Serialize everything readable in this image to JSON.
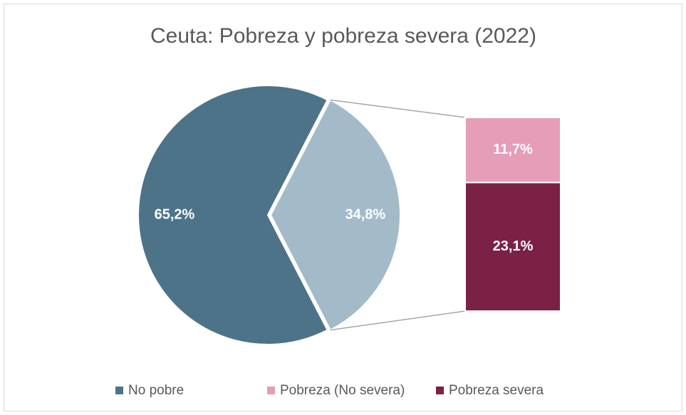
{
  "chart_data": {
    "type": "pie",
    "title": "Ceuta: Pobreza y pobreza severa (2022)",
    "categories": [
      "No pobre",
      "Pobreza (No severa)",
      "Pobreza severa"
    ],
    "values": [
      65.2,
      11.7,
      23.1
    ],
    "value_labels": [
      "65,2%",
      "11,7%",
      "23,1%"
    ],
    "colors": [
      "#4d7389",
      "#e59db8",
      "#7a2145"
    ],
    "secondary_total": {
      "value": 34.8,
      "value_label": "34,8%",
      "color": "#a3bbc9"
    }
  }
}
